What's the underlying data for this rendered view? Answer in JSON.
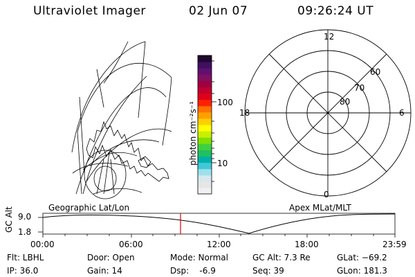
{
  "header": {
    "title": "Ultraviolet Imager",
    "date": "02 Jun 07",
    "time": "09:26:24 UT"
  },
  "colorbar": {
    "unit_label": "photon cm⁻²s⁻¹",
    "ticks": [
      "100",
      "10"
    ],
    "colors": [
      "#f0f0f0",
      "#e6e6e6",
      "#d6e8ee",
      "#9ee0ea",
      "#41c8d8",
      "#00b0a8",
      "#20c060",
      "#40d040",
      "#80e000",
      "#c8f000",
      "#ffff00",
      "#ffd000",
      "#ffa000",
      "#ff7000",
      "#ff2000",
      "#e0001a",
      "#c00030",
      "#a00040",
      "#801060",
      "#601070",
      "#401060",
      "#200830"
    ]
  },
  "map_labels": {
    "geographic": "Geographic Lat/Lon",
    "apex": "Apex MLat/MLT"
  },
  "polar_plot": {
    "mlt_labels": [
      "12",
      "18",
      "6",
      "0"
    ],
    "mlat_labels": [
      "60",
      "70",
      "80"
    ]
  },
  "timeline": {
    "ylabel": "GC Alt",
    "y_ticks": [
      "9.0",
      "1.8"
    ],
    "x_ticks": [
      "00:00",
      "06:00",
      "12:00",
      "18:00",
      "23:59"
    ],
    "current_time_color": "#dd0000"
  },
  "status": {
    "filter": "Flt: LBHL",
    "ip": "IP: 36.0",
    "door": "Door: Open",
    "gain": "Gain: 14",
    "mode": "Mode: Normal",
    "dsp": "Dsp:    -6.9",
    "gc_alt": "GC Alt: 7.3 Re",
    "seq": "Seq: 39",
    "glat": "GLat: −69.2",
    "glon": "GLon: 181.3"
  }
}
